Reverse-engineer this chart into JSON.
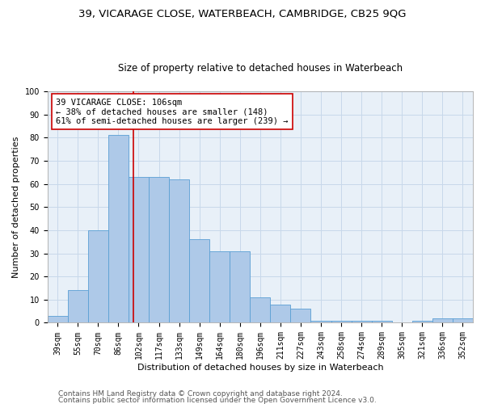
{
  "title_line1": "39, VICARAGE CLOSE, WATERBEACH, CAMBRIDGE, CB25 9QG",
  "title_line2": "Size of property relative to detached houses in Waterbeach",
  "xlabel": "Distribution of detached houses by size in Waterbeach",
  "ylabel": "Number of detached properties",
  "categories": [
    "39sqm",
    "55sqm",
    "70sqm",
    "86sqm",
    "102sqm",
    "117sqm",
    "133sqm",
    "149sqm",
    "164sqm",
    "180sqm",
    "196sqm",
    "211sqm",
    "227sqm",
    "243sqm",
    "258sqm",
    "274sqm",
    "289sqm",
    "305sqm",
    "321sqm",
    "336sqm",
    "352sqm"
  ],
  "values": [
    3,
    14,
    40,
    81,
    63,
    63,
    62,
    36,
    31,
    31,
    11,
    8,
    6,
    1,
    1,
    1,
    1,
    0,
    1,
    2,
    2
  ],
  "bar_color": "#aec9e8",
  "bar_edge_color": "#5a9fd4",
  "bar_width": 1.0,
  "vline_color": "#cc0000",
  "vline_pos": 3.73,
  "annotation_text": "39 VICARAGE CLOSE: 106sqm\n← 38% of detached houses are smaller (148)\n61% of semi-detached houses are larger (239) →",
  "annotation_box_facecolor": "#ffffff",
  "annotation_box_edgecolor": "#cc0000",
  "ylim": [
    0,
    100
  ],
  "yticks": [
    0,
    10,
    20,
    30,
    40,
    50,
    60,
    70,
    80,
    90,
    100
  ],
  "grid_color": "#c8d8ea",
  "bg_color": "#e8f0f8",
  "footer_line1": "Contains HM Land Registry data © Crown copyright and database right 2024.",
  "footer_line2": "Contains public sector information licensed under the Open Government Licence v3.0.",
  "title_fontsize": 9.5,
  "subtitle_fontsize": 8.5,
  "ylabel_fontsize": 8,
  "xlabel_fontsize": 8,
  "tick_fontsize": 7,
  "annotation_fontsize": 7.5,
  "footer_fontsize": 6.5
}
